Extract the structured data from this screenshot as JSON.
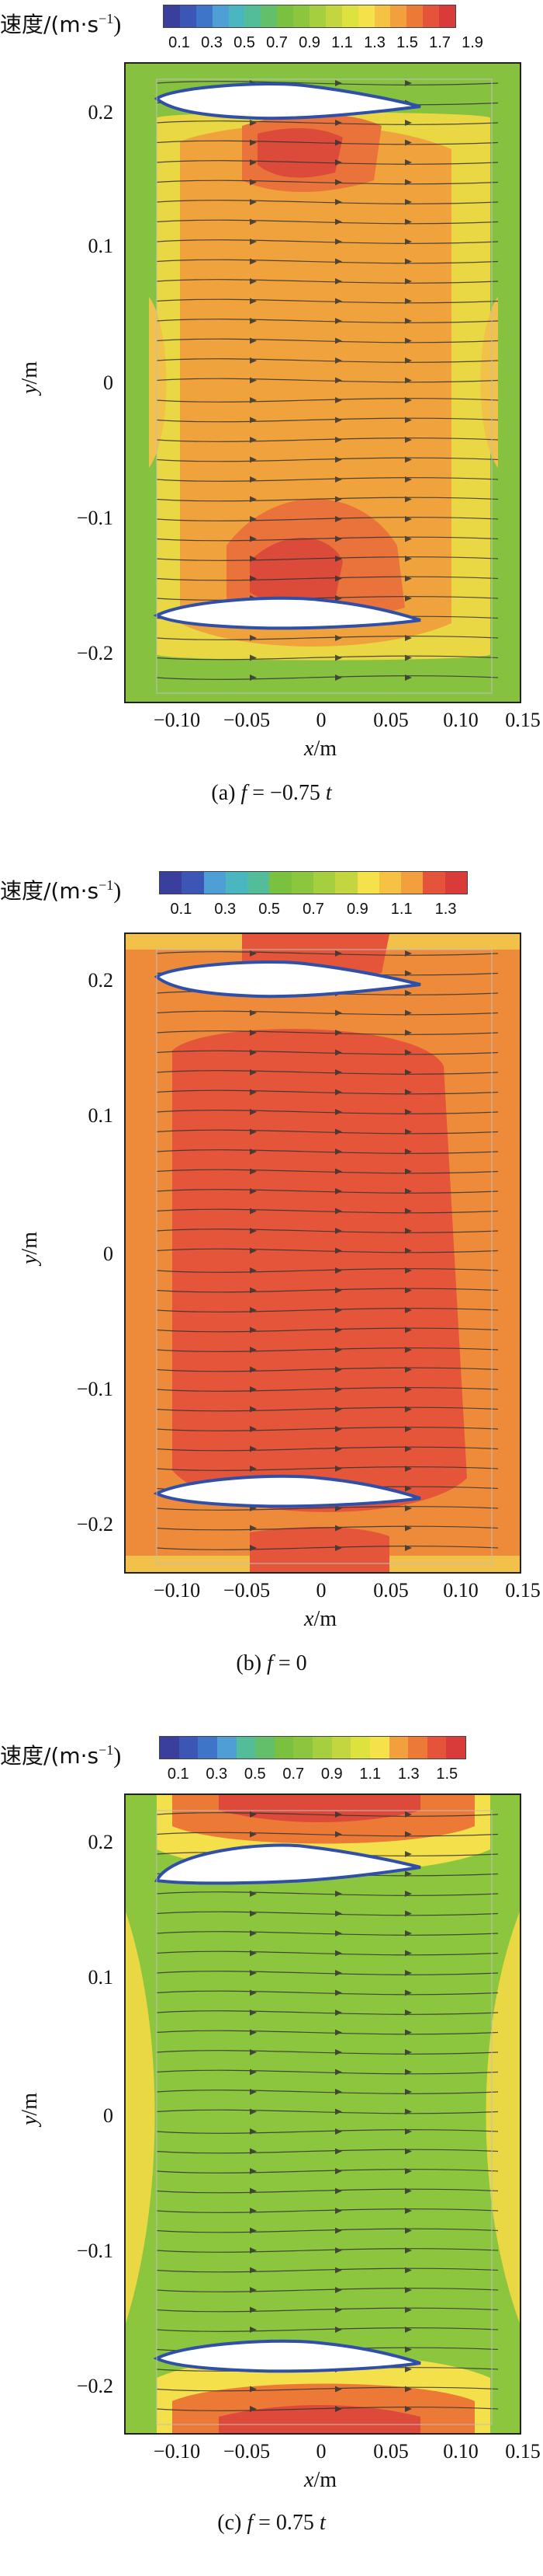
{
  "colorbar_title_text": "速度/(m·s",
  "colorbar_title_sup": "−1",
  "colorbar_title_close": ")",
  "colormap": [
    "#3a3f9e",
    "#3b56b4",
    "#3f75c8",
    "#4f9fd6",
    "#49b6c0",
    "#53bd9a",
    "#63bf6a",
    "#79c13f",
    "#8cc63e",
    "#a6cf3f",
    "#c3d63f",
    "#dde23f",
    "#f5e24a",
    "#f6c244",
    "#f2a03d",
    "#ec7a36",
    "#e4533a",
    "#d93a3a"
  ],
  "axis_labels": {
    "x_var": "x",
    "x_unit": "/m",
    "y_var": "y",
    "y_unit": "/m"
  },
  "x_ticks": [
    "−0.10",
    "−0.05",
    "0",
    "0.05",
    "0.10",
    "0.15"
  ],
  "y_ticks": [
    "0.2",
    "0.1",
    "0",
    "−0.1",
    "−0.2"
  ],
  "panels": [
    {
      "colorbar_ticks": [
        "0.1",
        "0.3",
        "0.5",
        "0.7",
        "0.9",
        "1.1",
        "1.3",
        "1.5",
        "1.7",
        "1.9"
      ],
      "caption_prefix": "(a)",
      "caption_var": "f",
      "caption_rest": " = −0.75",
      "caption_unit": "t",
      "field": "a"
    },
    {
      "colorbar_ticks": [
        "0.1",
        "0.3",
        "0.5",
        "0.7",
        "0.9",
        "1.1",
        "1.3"
      ],
      "caption_prefix": "(b)",
      "caption_var": "f",
      "caption_rest": " = 0",
      "caption_unit": "",
      "field": "b"
    },
    {
      "colorbar_ticks": [
        "0.1",
        "0.3",
        "0.5",
        "0.7",
        "0.9",
        "1.1",
        "1.3",
        "1.5"
      ],
      "caption_prefix": "(c)",
      "caption_var": "f",
      "caption_rest": " = 0.75",
      "caption_unit": "t",
      "field": "c"
    }
  ]
}
